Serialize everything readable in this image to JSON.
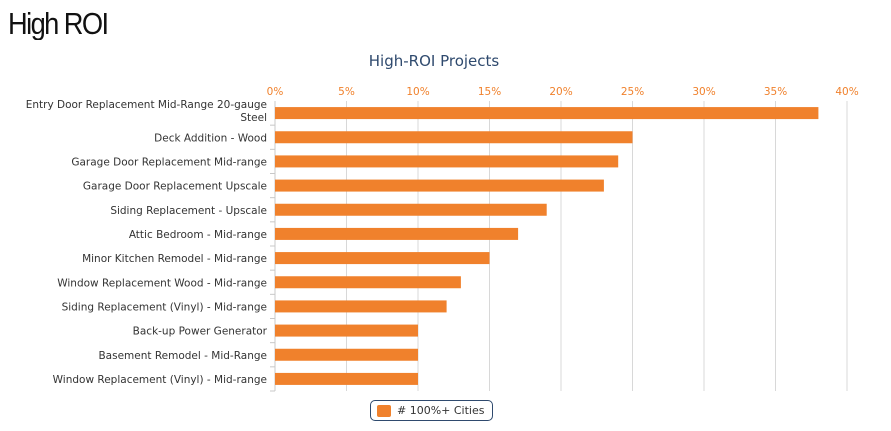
{
  "page": {
    "heading": "High ROI"
  },
  "chart_data": {
    "type": "bar",
    "orientation": "horizontal",
    "title": "High-ROI Projects",
    "categories": [
      "Entry Door Replacement Mid-Range 20-gauge Steel",
      "Deck Addition - Wood",
      "Garage Door Replacement Mid-range",
      "Garage Door Replacement Upscale",
      "Siding Replacement - Upscale",
      "Attic Bedroom - Mid-range",
      "Minor Kitchen Remodel - Mid-range",
      "Window Replacement Wood - Mid-range",
      "Siding Replacement (Vinyl) - Mid-range",
      "Back-up Power Generator",
      "Basement Remodel - Mid-Range",
      "Window Replacement (Vinyl) - Mid-range"
    ],
    "series": [
      {
        "name": "# 100%+ Cities",
        "values": [
          38,
          25,
          24,
          23,
          19,
          17,
          15,
          13,
          12,
          10,
          10,
          10
        ]
      }
    ],
    "xlim": [
      0,
      40
    ],
    "xticks": [
      0,
      5,
      10,
      15,
      20,
      25,
      30,
      35,
      40
    ],
    "tick_labels": [
      "0%",
      "5%",
      "10%",
      "15%",
      "20%",
      "25%",
      "30%",
      "35%",
      "40%"
    ],
    "axis_position": "top",
    "grid": true,
    "legend_position": "bottom-center",
    "colors": {
      "bar": "#f0812c",
      "grid": "#d8d8d8",
      "title": "#2f4a6e",
      "tick_text": "#f0812c",
      "label_text": "#333333"
    }
  }
}
